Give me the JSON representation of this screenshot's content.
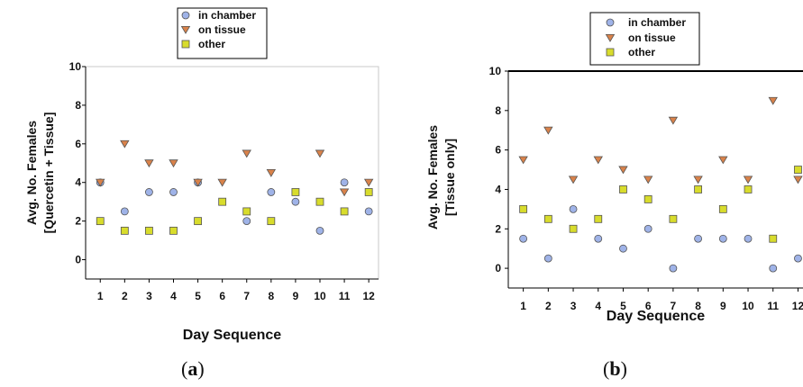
{
  "colors": {
    "in_chamber": "#9fb3e8",
    "on_tissue": "#d9824a",
    "other": "#d8dc2c",
    "marker_edge": "#555555",
    "axis": "#000000",
    "frame": "#c8c8c8"
  },
  "panels": [
    {
      "label_open": "(",
      "label_letter": "a",
      "label_close": ")"
    },
    {
      "label_open": "(",
      "label_letter": "b",
      "label_close": ")"
    }
  ],
  "chart_data": [
    {
      "type": "scatter",
      "title": "",
      "xlabel": "Day Sequence",
      "ylabel_lines": [
        "Avg. No. Females",
        "[Quercetin + Tissue]"
      ],
      "x": [
        1,
        2,
        3,
        4,
        5,
        6,
        7,
        8,
        9,
        10,
        11,
        12
      ],
      "xlim": [
        0.4,
        12.4
      ],
      "ylim": [
        -1,
        10
      ],
      "yticks": [
        0,
        2,
        4,
        6,
        8,
        10
      ],
      "legend_position": "top-center",
      "series": [
        {
          "name": "in chamber",
          "marker": "circle",
          "values": [
            4,
            2.5,
            3.5,
            3.5,
            4,
            null,
            2,
            3.5,
            3,
            1.5,
            4,
            2.5
          ]
        },
        {
          "name": "on tissue",
          "marker": "triangle-down",
          "values": [
            4,
            6,
            5,
            5,
            4,
            4,
            5.5,
            4.5,
            null,
            5.5,
            3.5,
            4
          ]
        },
        {
          "name": "other",
          "marker": "square",
          "values": [
            2,
            1.5,
            1.5,
            1.5,
            2,
            3,
            2.5,
            2,
            3.5,
            3,
            2.5,
            3.5
          ]
        }
      ]
    },
    {
      "type": "scatter",
      "title": "",
      "xlabel": "Day Sequence",
      "ylabel_lines": [
        "Avg. No. Females",
        "[Tissue only]"
      ],
      "x": [
        1,
        2,
        3,
        4,
        5,
        6,
        7,
        8,
        9,
        10,
        11,
        12
      ],
      "xlim": [
        0.4,
        12.2
      ],
      "ylim": [
        -1,
        10
      ],
      "yticks": [
        0,
        2,
        4,
        6,
        8,
        10
      ],
      "legend_position": "top-center",
      "series": [
        {
          "name": "in chamber",
          "marker": "circle",
          "values": [
            1.5,
            0.5,
            3,
            1.5,
            1,
            2,
            0,
            1.5,
            1.5,
            1.5,
            0,
            0.5
          ]
        },
        {
          "name": "on tissue",
          "marker": "triangle-down",
          "values": [
            5.5,
            7,
            4.5,
            5.5,
            5,
            4.5,
            7.5,
            4.5,
            5.5,
            4.5,
            8.5,
            4.5
          ]
        },
        {
          "name": "other",
          "marker": "square",
          "values": [
            3,
            2.5,
            2,
            2.5,
            4,
            3.5,
            2.5,
            4,
            3,
            4,
            1.5,
            5
          ]
        }
      ]
    }
  ]
}
